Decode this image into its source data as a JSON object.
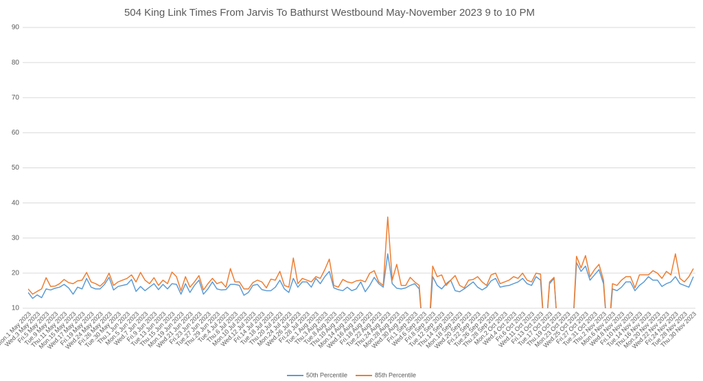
{
  "chart_data": {
    "type": "line",
    "title": "504 King Link Times From Jarvis To Bathurst Westbound May-November 2023 9 to 10 PM",
    "categories": [
      "Mon.1 May 2023",
      null,
      "Wed.3 May 2023",
      null,
      "Fri.5 May 2023",
      null,
      "Tue.9 May 2023",
      null,
      "Thu.11 May 2023",
      null,
      "Mon.15 May 2023",
      null,
      "Wed.17 May 2023",
      null,
      "Fri.19 May 2023",
      null,
      "Wed.24 May 2023",
      null,
      "Fri.26 May 2023",
      null,
      "Tue.30 May 2023",
      null,
      "Thu.1 Jun 2023",
      null,
      "Mon.5 Jun 2023",
      null,
      "Wed.7 Jun 2023",
      null,
      "Fri.9 Jun 2023",
      null,
      "Tue.13 Jun 2023",
      null,
      "Thu.15 Jun 2023",
      null,
      "Mon.19 Jun 2023",
      null,
      "Wed.21 Jun 2023",
      null,
      "Fri.23 Jun 2023",
      null,
      "Tue.27 Jun 2023",
      null,
      "Thu.29 Jun 2023",
      null,
      "Tue.4 Jul 2023",
      null,
      "Thu.6 Jul 2023",
      null,
      "Mon.10 Jul 2023",
      null,
      "Wed.12 Jul 2023",
      null,
      "Fri.14 Jul 2023",
      null,
      "Tue.18 Jul 2023",
      null,
      "Thu.20 Jul 2023",
      null,
      "Mon.24 Jul 2023",
      null,
      "Wed.26 Jul 2023",
      null,
      "Fri.28 Jul 2023",
      null,
      "Tue.1 Aug 2023",
      null,
      "Thu.3 Aug 2023",
      null,
      "Tue.8 Aug 2023",
      null,
      "Thu.10 Aug 2023",
      null,
      "Mon.14 Aug 2023",
      null,
      "Wed.16 Aug 2023",
      null,
      "Fri.18 Aug 2023",
      null,
      "Tue.22 Aug 2023",
      null,
      "Thu.24 Aug 2023",
      null,
      "Mon.28 Aug 2023",
      null,
      "Wed.30 Aug 2023",
      null,
      "Fri.1 Sep 2023",
      null,
      "Wed.6 Sep 2023",
      null,
      "Fri.8 Sep 2023",
      null,
      "Tue.12 Sep 2023",
      null,
      "Thu.14 Sep 2023",
      null,
      "Mon.18 Sep 2023",
      null,
      "Wed.20 Sep 2023",
      null,
      "Fri.22 Sep 2023",
      null,
      "Tue.26 Sep 2023",
      null,
      "Thu.28 Sep 2023",
      null,
      "Mon.2 Oct 2023",
      null,
      "Wed.4 Oct 2023",
      null,
      "Fri.6 Oct 2023",
      null,
      "Wed.11 Oct 2023",
      null,
      "Fri.13 Oct 2023",
      null,
      "Tue.17 Oct 2023",
      null,
      "Thu.19 Oct 2023",
      null,
      "Mon.23 Oct 2023",
      null,
      "Wed.25 Oct 2023",
      null,
      "Fri.27 Oct 2023",
      null,
      "Tue.31 Oct 2023",
      null,
      "Thu.2 Nov 2023",
      null,
      "Mon.6 Nov 2023",
      null,
      "Wed.8 Nov 2023",
      null,
      "Fri.10 Nov 2023",
      null,
      "Tue.14 Nov 2023",
      null,
      "Thu.16 Nov 2023",
      null,
      "Mon.20 Nov 2023",
      null,
      "Wed.22 Nov 2023",
      null,
      "Fri.24 Nov 2023",
      null,
      "Tue.28 Nov 2023",
      null,
      "Thu.30 Nov 2023"
    ],
    "series": [
      {
        "name": "50th Percentile",
        "color": "#5b9bd5",
        "values": [
          14.5,
          12.8,
          13.8,
          13.0,
          15.5,
          15.2,
          15.7,
          16.0,
          16.8,
          15.8,
          14.0,
          16.0,
          15.5,
          18.5,
          16.0,
          15.5,
          15.5,
          16.8,
          18.8,
          15.2,
          16.2,
          16.5,
          16.8,
          18.2,
          14.8,
          16.2,
          15.0,
          16.0,
          17.0,
          15.3,
          16.8,
          15.5,
          17.0,
          16.8,
          14.0,
          17.0,
          14.5,
          16.5,
          18.0,
          14.0,
          15.5,
          17.5,
          15.5,
          15.2,
          15.3,
          16.8,
          16.8,
          16.5,
          13.7,
          14.5,
          16.5,
          16.8,
          15.3,
          15.0,
          15.0,
          16.0,
          18.0,
          15.5,
          14.5,
          18.5,
          16.0,
          17.5,
          17.5,
          16.0,
          18.5,
          17.0,
          19.0,
          20.5,
          15.8,
          15.3,
          15.0,
          16.0,
          15.0,
          15.5,
          17.5,
          14.7,
          16.5,
          18.8,
          17.0,
          16.0,
          25.5,
          17.0,
          15.7,
          15.5,
          15.8,
          16.5,
          17.0,
          15.5,
          0,
          0,
          19.0,
          16.5,
          15.5,
          17.0,
          18.0,
          15.0,
          14.7,
          15.5,
          16.5,
          17.5,
          16.0,
          15.2,
          16.0,
          17.8,
          18.5,
          16.0,
          16.3,
          16.5,
          17.0,
          17.5,
          18.5,
          17.0,
          16.5,
          19.0,
          18.0,
          0,
          17.0,
          18.5,
          0,
          null,
          null,
          0,
          23.0,
          20.5,
          22.0,
          18.0,
          19.5,
          21.0,
          17.0,
          0,
          15.5,
          15.0,
          16.0,
          17.5,
          17.5,
          15.0,
          16.5,
          17.5,
          19.0,
          18.0,
          18.0,
          16.2,
          17.0,
          17.5,
          19.0,
          17.0,
          16.5,
          16.0,
          19.0
        ]
      },
      {
        "name": "85th Percentile",
        "color": "#ed7d31",
        "values": [
          15.5,
          14.0,
          14.8,
          15.5,
          18.7,
          16.2,
          16.3,
          17.0,
          18.2,
          17.3,
          17.0,
          17.8,
          18.0,
          20.2,
          17.5,
          17.0,
          16.3,
          17.5,
          20.0,
          16.5,
          17.5,
          18.0,
          18.5,
          19.5,
          17.5,
          20.2,
          18.0,
          17.0,
          18.7,
          16.5,
          18.0,
          17.0,
          20.3,
          19.0,
          15.0,
          19.0,
          16.0,
          17.5,
          19.3,
          15.2,
          17.0,
          18.5,
          17.0,
          17.5,
          16.0,
          21.3,
          17.5,
          17.5,
          15.5,
          15.5,
          17.3,
          18.0,
          17.5,
          15.8,
          18.3,
          18.0,
          20.5,
          16.5,
          16.0,
          24.3,
          17.0,
          18.5,
          18.0,
          17.5,
          19.0,
          18.5,
          21.0,
          24.0,
          16.5,
          16.0,
          18.2,
          17.5,
          17.2,
          17.8,
          18.0,
          17.5,
          20.0,
          20.7,
          17.5,
          16.5,
          36.0,
          18.0,
          22.5,
          16.5,
          16.5,
          18.8,
          17.5,
          16.5,
          0,
          0,
          22.0,
          19.0,
          19.5,
          16.5,
          18.0,
          19.3,
          16.5,
          15.8,
          18.0,
          18.2,
          19.0,
          17.5,
          16.5,
          19.5,
          20.0,
          17.0,
          17.5,
          18.0,
          19.0,
          18.5,
          20.0,
          18.0,
          17.5,
          20.0,
          19.7,
          0,
          17.5,
          18.8,
          0,
          null,
          null,
          0,
          24.8,
          21.5,
          25.0,
          19.0,
          21.0,
          22.5,
          18.0,
          0,
          17.0,
          16.5,
          18.0,
          19.0,
          19.0,
          15.8,
          19.5,
          19.5,
          19.5,
          20.7,
          20.0,
          18.5,
          20.5,
          19.5,
          25.5,
          18.5,
          17.5,
          19.0,
          21.3
        ]
      }
    ],
    "ylim": [
      10,
      90
    ],
    "yticks": [
      10,
      20,
      30,
      40,
      50,
      60,
      70,
      80,
      90
    ],
    "grid": true,
    "legend": "bottom"
  }
}
